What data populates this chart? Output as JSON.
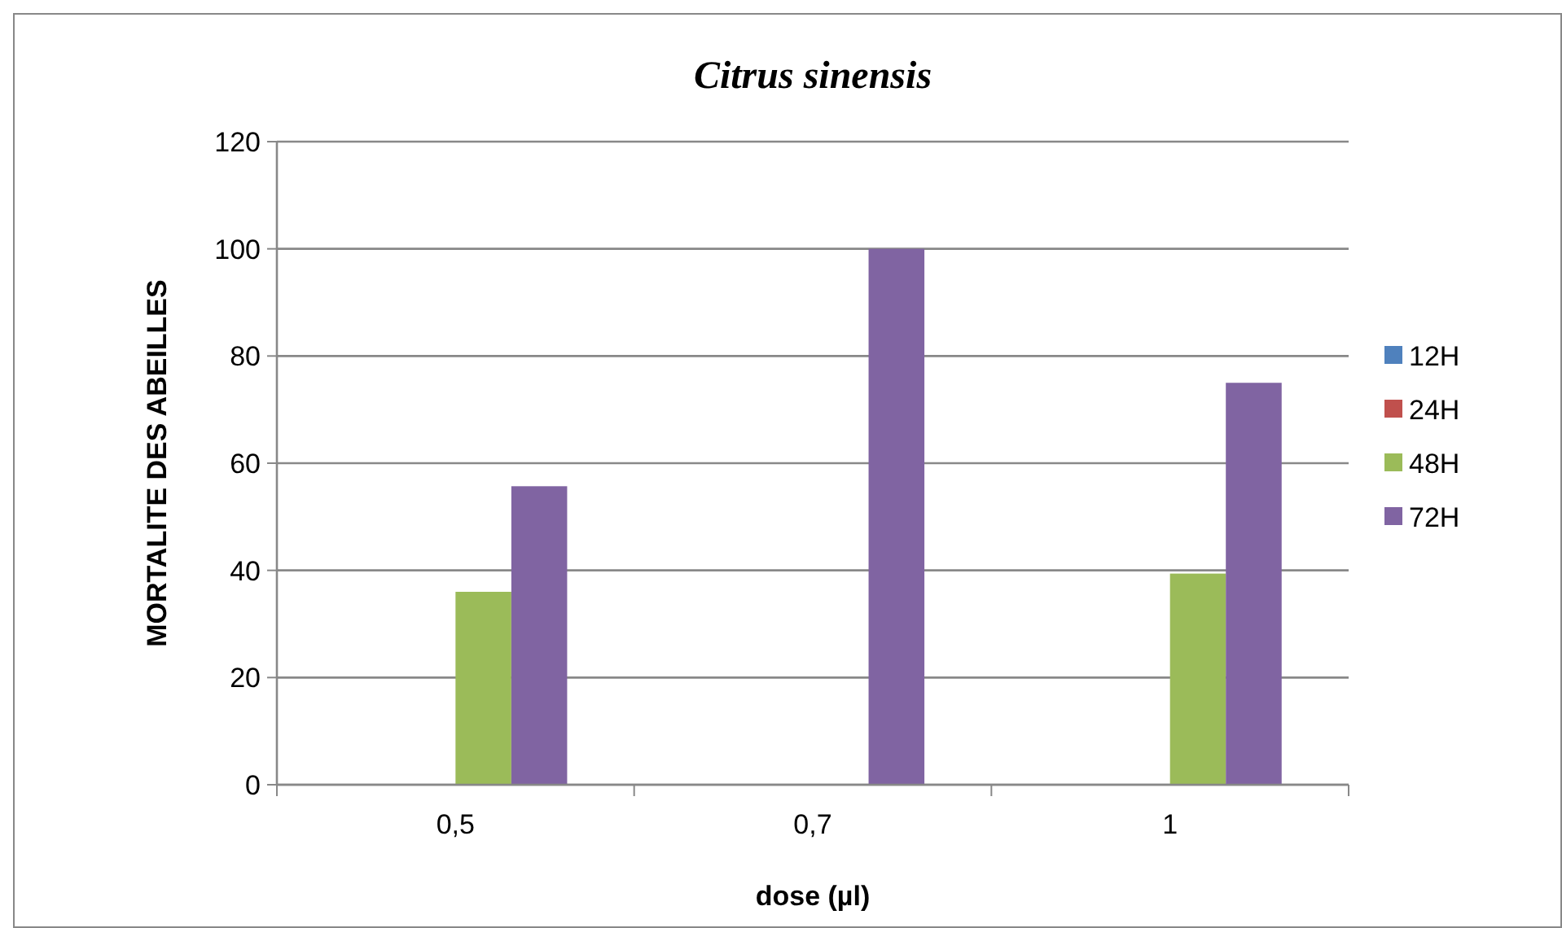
{
  "chart_data": {
    "type": "bar",
    "title": "Citrus sinensis",
    "xlabel": "dose (µl)",
    "ylabel": "MORTALITE DES ABEILLES",
    "categories": [
      "0,5",
      "0,7",
      "1"
    ],
    "series": [
      {
        "name": "12H",
        "color": "#4f81bd",
        "values": [
          0,
          0,
          0
        ]
      },
      {
        "name": "24H",
        "color": "#c0504d",
        "values": [
          0,
          0,
          0
        ]
      },
      {
        "name": "48H",
        "color": "#9bbb59",
        "values": [
          36,
          0,
          39.4
        ]
      },
      {
        "name": "72H",
        "color": "#8064a2",
        "values": [
          55.7,
          100,
          75
        ]
      }
    ],
    "ylim": [
      0,
      120
    ],
    "yticks": [
      0,
      20,
      40,
      60,
      80,
      100,
      120
    ],
    "grid": "y",
    "legend": "right"
  }
}
